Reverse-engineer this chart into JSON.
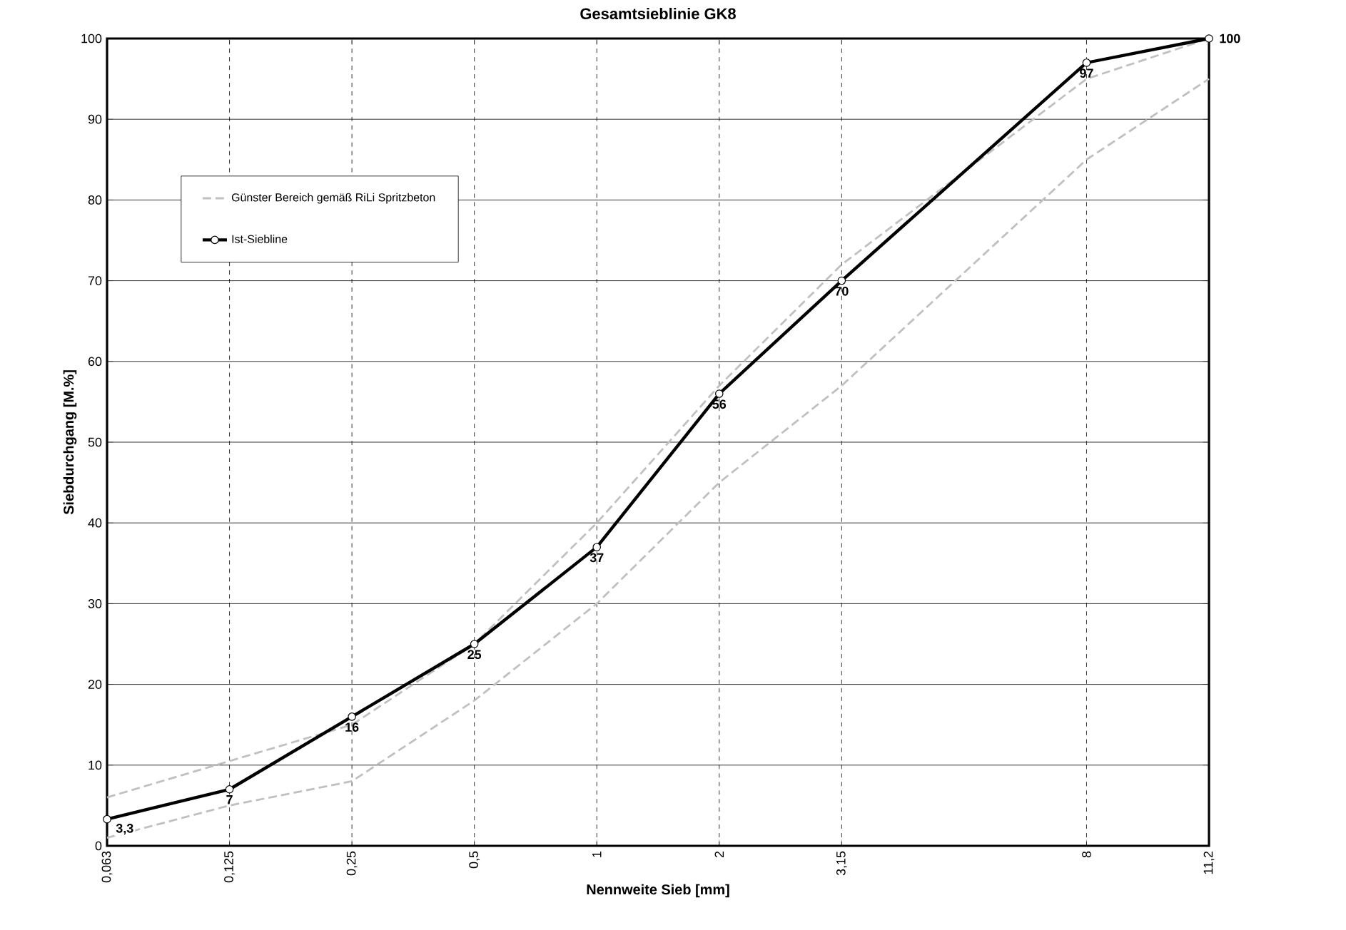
{
  "chart_data": {
    "type": "line",
    "title": "Gesamtsieblinie GK8",
    "xlabel": "Nennweite Sieb [mm]",
    "ylabel": "Siebdurchgang [M.%]",
    "categories": [
      "0,063",
      "0,125",
      "0,25",
      "0,5",
      "1",
      "2",
      "3,15",
      null,
      "8",
      "11,2"
    ],
    "ylim": [
      0,
      100
    ],
    "yticks": [
      0,
      10,
      20,
      30,
      40,
      50,
      60,
      70,
      80,
      90,
      100
    ],
    "grid": true,
    "legend": "top left",
    "series": [
      {
        "name": "Günster Bereich gemäß RiLi Spritzbeton",
        "color": "#c0c0c0",
        "line_style": "dashed",
        "marker": "none",
        "values": [
          6,
          10.5,
          15,
          25,
          40,
          57,
          72,
          null,
          95,
          100
        ]
      },
      {
        "color": "#c0c0c0",
        "line_style": "dashed",
        "marker": "none",
        "values": [
          1,
          5,
          8,
          18,
          30,
          45,
          57,
          null,
          85,
          95
        ]
      },
      {
        "name": "Ist-Siebline",
        "color": "#000000",
        "line_style": "solid",
        "marker": "circle",
        "values": [
          3.3,
          7,
          16,
          25,
          37,
          56,
          70,
          null,
          97,
          100
        ],
        "value_labels": [
          "3,3",
          "7",
          "16",
          "25",
          "37",
          "56",
          "70",
          null,
          "97",
          "100"
        ]
      }
    ]
  }
}
